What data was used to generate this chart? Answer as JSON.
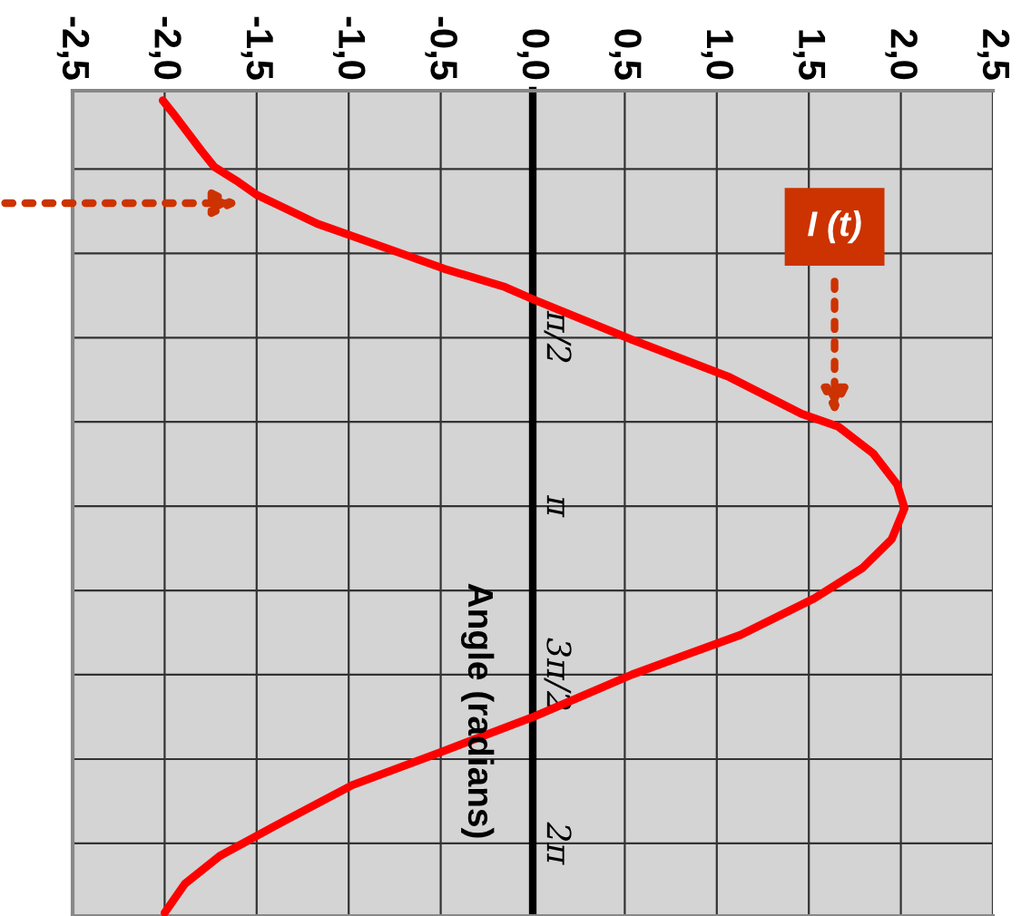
{
  "chart_data": {
    "type": "line",
    "ylabel": "Angle (radians)",
    "series": [
      {
        "color": "#ff0000",
        "x": [
          -2.01,
          -1.95,
          -1.8,
          -1.73,
          -1.6,
          -1.5,
          -1.17,
          -0.84,
          -0.48,
          -0.15,
          0.01,
          0.54,
          1.07,
          1.46,
          1.66,
          1.85,
          1.98,
          2.02,
          1.95,
          1.79,
          1.53,
          1.13,
          0.54,
          0.01,
          -0.51,
          -0.98,
          -1.4,
          -1.7,
          -1.89,
          -2.0
        ],
        "values": [
          -0.64,
          -0.51,
          -0.17,
          -0.02,
          0.12,
          0.24,
          0.51,
          0.71,
          0.93,
          1.1,
          1.22,
          1.59,
          1.94,
          2.28,
          2.4,
          2.65,
          2.94,
          3.16,
          3.45,
          3.72,
          4.0,
          4.34,
          4.71,
          5.1,
          5.44,
          5.74,
          6.12,
          6.4,
          6.66,
          6.93
        ]
      }
    ],
    "annotations": [
      "I (t)"
    ],
    "xlim": [
      -2.5,
      2.5
    ],
    "xticks": [
      {
        "value": -2.5,
        "label": "-2,5"
      },
      {
        "value": -2.0,
        "label": "-2,0"
      },
      {
        "value": -1.5,
        "label": "-1,5"
      },
      {
        "value": -1.0,
        "label": "-1,0"
      },
      {
        "value": -0.5,
        "label": "-0,5"
      },
      {
        "value": 0.0,
        "label": "0,0"
      },
      {
        "value": 0.5,
        "label": "0,5"
      },
      {
        "value": 1.0,
        "label": "1,0"
      },
      {
        "value": 1.5,
        "label": "1,5"
      },
      {
        "value": 2.0,
        "label": "2,0"
      },
      {
        "value": 2.5,
        "label": "2,5"
      }
    ],
    "ylim": [
      6.96,
      -0.73
    ],
    "yticks": [
      {
        "value": 0,
        "label": null
      },
      {
        "value": 0.785,
        "label": null
      },
      {
        "value": 1.571,
        "label": "π/2"
      },
      {
        "value": 2.356,
        "label": null
      },
      {
        "value": 3.142,
        "label": "π"
      },
      {
        "value": 3.927,
        "label": null
      },
      {
        "value": 4.712,
        "label": "3π/2"
      },
      {
        "value": 5.498,
        "label": null
      },
      {
        "value": 6.283,
        "label": "2π"
      }
    ],
    "grid": true,
    "line_style": "solid",
    "marker": "none"
  }
}
